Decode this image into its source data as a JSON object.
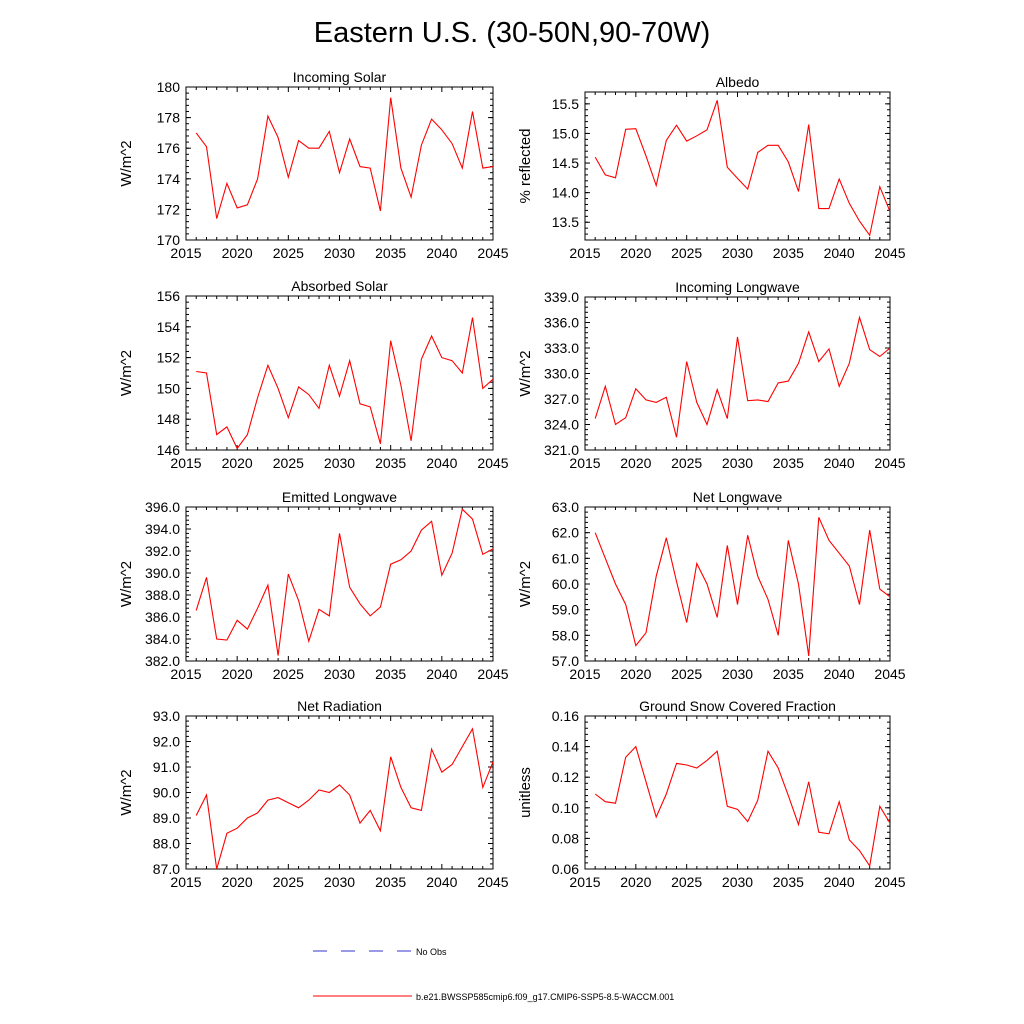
{
  "title": "Eastern U.S. (30-50N,90-70W)",
  "legend": {
    "items": [
      {
        "label": "No Obs",
        "color": "#3333cc",
        "dash": true
      },
      {
        "label": "b.e21.BWSSP585cmip6.f09_g17.CMIP6-SSP5-8.5-WACCM.001",
        "color": "#ff0000",
        "dash": false
      }
    ]
  },
  "chart_data": [
    {
      "type": "line",
      "title": "Incoming Solar",
      "ylabel": "W/m^2",
      "xlim": [
        2015,
        2045
      ],
      "ylim": [
        170,
        180
      ],
      "xticks": [
        2015,
        2020,
        2025,
        2030,
        2035,
        2040,
        2045
      ],
      "yticks": [
        170,
        172,
        174,
        176,
        178,
        180
      ],
      "ydecimals": 0,
      "x": [
        2016,
        2017,
        2018,
        2019,
        2020,
        2021,
        2022,
        2023,
        2024,
        2025,
        2026,
        2027,
        2028,
        2029,
        2030,
        2031,
        2032,
        2033,
        2034,
        2035,
        2036,
        2037,
        2038,
        2039,
        2040,
        2041,
        2042,
        2043,
        2044,
        2045
      ],
      "series": [
        {
          "name": "b.e21.BWSSP585cmip6.f09_g17.CMIP6-SSP5-8.5-WACCM.001",
          "color": "#ff0000",
          "values": [
            177.0,
            176.1,
            171.4,
            173.7,
            172.1,
            172.3,
            174.0,
            178.1,
            176.7,
            174.1,
            176.5,
            176.0,
            176.0,
            177.1,
            174.4,
            176.6,
            174.8,
            174.7,
            171.9,
            179.3,
            174.7,
            172.8,
            176.2,
            177.9,
            177.2,
            176.3,
            174.7,
            178.4,
            174.7,
            174.8
          ]
        }
      ]
    },
    {
      "type": "line",
      "title": "Albedo",
      "ylabel": "% reflected",
      "xlim": [
        2015,
        2045
      ],
      "ylim": [
        13.2,
        15.7
      ],
      "xticks": [
        2015,
        2020,
        2025,
        2030,
        2035,
        2040,
        2045
      ],
      "yticks": [
        13.5,
        14.0,
        14.5,
        15.0,
        15.5
      ],
      "ydecimals": 1,
      "x": [
        2016,
        2017,
        2018,
        2019,
        2020,
        2021,
        2022,
        2023,
        2024,
        2025,
        2026,
        2027,
        2028,
        2029,
        2030,
        2031,
        2032,
        2033,
        2034,
        2035,
        2036,
        2037,
        2038,
        2039,
        2040,
        2041,
        2042,
        2043,
        2044,
        2045
      ],
      "series": [
        {
          "name": "b.e21.BWSSP585cmip6.f09_g17.CMIP6-SSP5-8.5-WACCM.001",
          "color": "#ff0000",
          "values": [
            14.6,
            14.3,
            14.25,
            15.07,
            15.08,
            14.62,
            14.12,
            14.88,
            15.14,
            14.87,
            14.96,
            15.06,
            15.56,
            14.43,
            14.24,
            14.06,
            14.68,
            14.8,
            14.8,
            14.52,
            14.02,
            15.15,
            13.73,
            13.73,
            14.23,
            13.82,
            13.52,
            13.28,
            14.1,
            13.68
          ]
        }
      ]
    },
    {
      "type": "line",
      "title": "Absorbed Solar",
      "ylabel": "W/m^2",
      "xlim": [
        2015,
        2045
      ],
      "ylim": [
        146,
        156
      ],
      "xticks": [
        2015,
        2020,
        2025,
        2030,
        2035,
        2040,
        2045
      ],
      "yticks": [
        146,
        148,
        150,
        152,
        154,
        156
      ],
      "ydecimals": 0,
      "x": [
        2016,
        2017,
        2018,
        2019,
        2020,
        2021,
        2022,
        2023,
        2024,
        2025,
        2026,
        2027,
        2028,
        2029,
        2030,
        2031,
        2032,
        2033,
        2034,
        2035,
        2036,
        2037,
        2038,
        2039,
        2040,
        2041,
        2042,
        2043,
        2044,
        2045
      ],
      "series": [
        {
          "name": "b.e21.BWSSP585cmip6.f09_g17.CMIP6-SSP5-8.5-WACCM.001",
          "color": "#ff0000",
          "values": [
            151.1,
            151.0,
            147.0,
            147.5,
            146.1,
            147.0,
            149.4,
            151.5,
            150.0,
            148.1,
            150.1,
            149.6,
            148.7,
            151.5,
            149.5,
            151.8,
            149.0,
            148.8,
            146.4,
            153.1,
            150.2,
            146.6,
            151.9,
            153.4,
            152.0,
            151.8,
            151.0,
            154.6,
            150.0,
            150.6
          ]
        }
      ]
    },
    {
      "type": "line",
      "title": "Incoming Longwave",
      "ylabel": "W/m^2",
      "xlim": [
        2015,
        2045
      ],
      "ylim": [
        321,
        339
      ],
      "xticks": [
        2015,
        2020,
        2025,
        2030,
        2035,
        2040,
        2045
      ],
      "yticks": [
        321.0,
        324.0,
        327.0,
        330.0,
        333.0,
        336.0,
        339.0
      ],
      "ydecimals": 1,
      "x": [
        2016,
        2017,
        2018,
        2019,
        2020,
        2021,
        2022,
        2023,
        2024,
        2025,
        2026,
        2027,
        2028,
        2029,
        2030,
        2031,
        2032,
        2033,
        2034,
        2035,
        2036,
        2037,
        2038,
        2039,
        2040,
        2041,
        2042,
        2043,
        2044,
        2045
      ],
      "series": [
        {
          "name": "b.e21.BWSSP585cmip6.f09_g17.CMIP6-SSP5-8.5-WACCM.001",
          "color": "#ff0000",
          "values": [
            324.7,
            328.5,
            324.0,
            324.8,
            328.2,
            326.9,
            326.6,
            327.2,
            322.5,
            331.4,
            326.6,
            324.0,
            328.1,
            324.7,
            334.3,
            326.8,
            326.9,
            326.7,
            328.9,
            329.1,
            331.2,
            334.9,
            331.4,
            332.9,
            328.5,
            331.2,
            336.6,
            332.8,
            332.0,
            333.0
          ]
        }
      ]
    },
    {
      "type": "line",
      "title": "Emitted Longwave",
      "ylabel": "W/m^2",
      "xlim": [
        2015,
        2045
      ],
      "ylim": [
        382,
        396
      ],
      "xticks": [
        2015,
        2020,
        2025,
        2030,
        2035,
        2040,
        2045
      ],
      "yticks": [
        382.0,
        384.0,
        386.0,
        388.0,
        390.0,
        392.0,
        394.0,
        396.0
      ],
      "ydecimals": 1,
      "x": [
        2016,
        2017,
        2018,
        2019,
        2020,
        2021,
        2022,
        2023,
        2024,
        2025,
        2026,
        2027,
        2028,
        2029,
        2030,
        2031,
        2032,
        2033,
        2034,
        2035,
        2036,
        2037,
        2038,
        2039,
        2040,
        2041,
        2042,
        2043,
        2044,
        2045
      ],
      "series": [
        {
          "name": "b.e21.BWSSP585cmip6.f09_g17.CMIP6-SSP5-8.5-WACCM.001",
          "color": "#ff0000",
          "values": [
            386.6,
            389.6,
            384.0,
            383.9,
            385.7,
            384.9,
            386.8,
            388.9,
            382.5,
            389.9,
            387.5,
            383.8,
            386.7,
            386.1,
            393.6,
            388.7,
            387.2,
            386.1,
            386.9,
            390.8,
            391.2,
            392.0,
            393.9,
            394.7,
            389.8,
            391.8,
            395.8,
            394.9,
            391.7,
            392.2
          ]
        }
      ]
    },
    {
      "type": "line",
      "title": "Net Longwave",
      "ylabel": "W/m^2",
      "xlim": [
        2015,
        2045
      ],
      "ylim": [
        57,
        63
      ],
      "xticks": [
        2015,
        2020,
        2025,
        2030,
        2035,
        2040,
        2045
      ],
      "yticks": [
        57.0,
        58.0,
        59.0,
        60.0,
        61.0,
        62.0,
        63.0
      ],
      "ydecimals": 1,
      "x": [
        2016,
        2017,
        2018,
        2019,
        2020,
        2021,
        2022,
        2023,
        2024,
        2025,
        2026,
        2027,
        2028,
        2029,
        2030,
        2031,
        2032,
        2033,
        2034,
        2035,
        2036,
        2037,
        2038,
        2039,
        2040,
        2041,
        2042,
        2043,
        2044,
        2045
      ],
      "series": [
        {
          "name": "b.e21.BWSSP585cmip6.f09_g17.CMIP6-SSP5-8.5-WACCM.001",
          "color": "#ff0000",
          "values": [
            62.0,
            61.0,
            60.0,
            59.2,
            57.6,
            58.1,
            60.3,
            61.8,
            60.1,
            58.5,
            60.8,
            60.0,
            58.7,
            61.5,
            59.2,
            61.9,
            60.3,
            59.4,
            58.0,
            61.7,
            60.0,
            57.2,
            62.6,
            61.7,
            61.2,
            60.7,
            59.2,
            62.1,
            59.8,
            59.5
          ]
        }
      ]
    },
    {
      "type": "line",
      "title": "Net Radiation",
      "ylabel": "W/m^2",
      "xlim": [
        2015,
        2045
      ],
      "ylim": [
        87,
        93
      ],
      "xticks": [
        2015,
        2020,
        2025,
        2030,
        2035,
        2040,
        2045
      ],
      "yticks": [
        87.0,
        88.0,
        89.0,
        90.0,
        91.0,
        92.0,
        93.0
      ],
      "ydecimals": 1,
      "x": [
        2016,
        2017,
        2018,
        2019,
        2020,
        2021,
        2022,
        2023,
        2024,
        2025,
        2026,
        2027,
        2028,
        2029,
        2030,
        2031,
        2032,
        2033,
        2034,
        2035,
        2036,
        2037,
        2038,
        2039,
        2040,
        2041,
        2042,
        2043,
        2044,
        2045
      ],
      "series": [
        {
          "name": "b.e21.BWSSP585cmip6.f09_g17.CMIP6-SSP5-8.5-WACCM.001",
          "color": "#ff0000",
          "values": [
            89.1,
            89.9,
            87.0,
            88.4,
            88.6,
            89.0,
            89.2,
            89.7,
            89.8,
            89.6,
            89.4,
            89.7,
            90.1,
            90.0,
            90.3,
            89.9,
            88.8,
            89.3,
            88.5,
            91.4,
            90.2,
            89.4,
            89.3,
            91.7,
            90.8,
            91.1,
            91.8,
            92.5,
            90.2,
            91.2
          ]
        }
      ]
    },
    {
      "type": "line",
      "title": "Ground Snow Covered Fraction",
      "ylabel": "unitless",
      "xlim": [
        2015,
        2045
      ],
      "ylim": [
        0.06,
        0.16
      ],
      "xticks": [
        2015,
        2020,
        2025,
        2030,
        2035,
        2040,
        2045
      ],
      "yticks": [
        0.06,
        0.08,
        0.1,
        0.12,
        0.14,
        0.16
      ],
      "ydecimals": 2,
      "x": [
        2016,
        2017,
        2018,
        2019,
        2020,
        2021,
        2022,
        2023,
        2024,
        2025,
        2026,
        2027,
        2028,
        2029,
        2030,
        2031,
        2032,
        2033,
        2034,
        2035,
        2036,
        2037,
        2038,
        2039,
        2040,
        2041,
        2042,
        2043,
        2044,
        2045
      ],
      "series": [
        {
          "name": "b.e21.BWSSP585cmip6.f09_g17.CMIP6-SSP5-8.5-WACCM.001",
          "color": "#ff0000",
          "values": [
            0.109,
            0.104,
            0.103,
            0.133,
            0.14,
            0.117,
            0.094,
            0.109,
            0.129,
            0.128,
            0.126,
            0.131,
            0.137,
            0.101,
            0.099,
            0.091,
            0.105,
            0.137,
            0.126,
            0.108,
            0.089,
            0.117,
            0.084,
            0.083,
            0.104,
            0.079,
            0.072,
            0.062,
            0.101,
            0.09
          ]
        }
      ]
    }
  ]
}
